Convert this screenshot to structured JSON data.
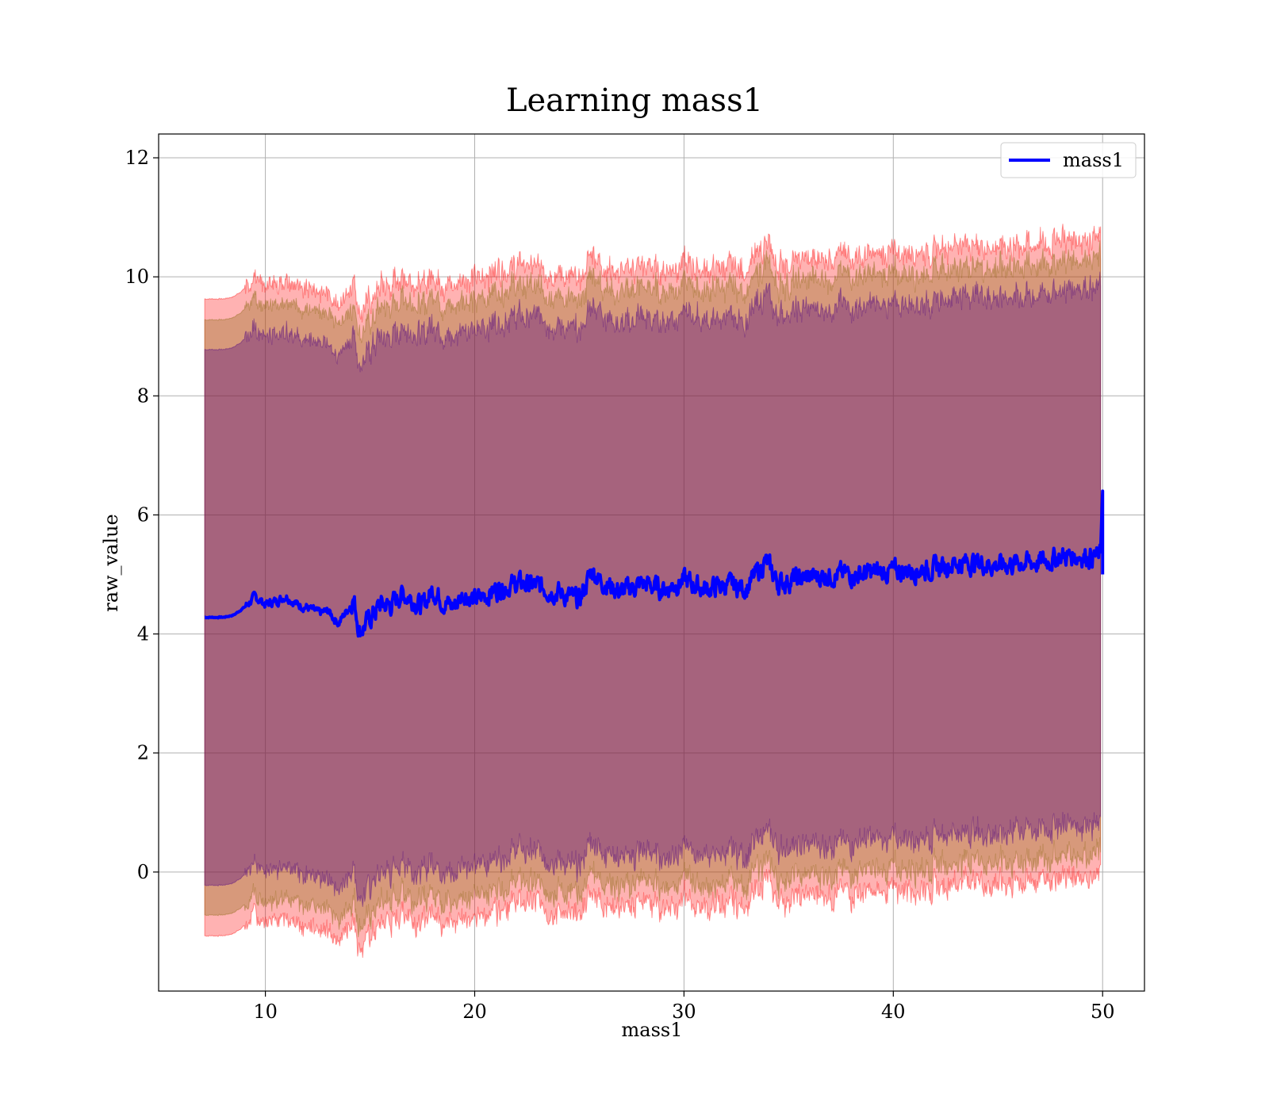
{
  "chart_data": {
    "type": "line",
    "title": "Learning mass1",
    "xlabel": "mass1",
    "ylabel": "raw_value",
    "xlim": [
      4.9,
      52.0
    ],
    "ylim": [
      -2.0,
      12.4
    ],
    "xticks": [
      10,
      20,
      30,
      40,
      50
    ],
    "yticks": [
      0,
      2,
      4,
      6,
      8,
      10,
      12
    ],
    "grid": true,
    "legend_position": "upper right",
    "x_start": 7.1,
    "x_end": 50.0,
    "series": [
      {
        "name": "mass1",
        "color": "#0000ff",
        "anchors": [
          [
            7.1,
            4.28
          ],
          [
            8.0,
            4.28
          ],
          [
            8.5,
            4.32
          ],
          [
            9.0,
            4.45
          ],
          [
            9.5,
            4.62
          ],
          [
            10.0,
            4.5
          ],
          [
            10.5,
            4.55
          ],
          [
            11.0,
            4.64
          ],
          [
            11.5,
            4.5
          ],
          [
            12.0,
            4.45
          ],
          [
            12.5,
            4.35
          ],
          [
            13.0,
            4.38
          ],
          [
            13.5,
            4.18
          ],
          [
            14.0,
            4.45
          ],
          [
            14.2,
            4.62
          ],
          [
            14.5,
            4.05
          ],
          [
            15.0,
            4.25
          ],
          [
            15.5,
            4.5
          ],
          [
            16.0,
            4.48
          ],
          [
            16.5,
            4.68
          ],
          [
            17.0,
            4.6
          ],
          [
            17.5,
            4.45
          ],
          [
            18.0,
            4.75
          ],
          [
            18.5,
            4.55
          ],
          [
            19.0,
            4.45
          ],
          [
            19.5,
            4.7
          ],
          [
            20.0,
            4.55
          ],
          [
            21.0,
            4.75
          ],
          [
            22.0,
            4.85
          ],
          [
            23.0,
            4.8
          ],
          [
            24.0,
            4.7
          ],
          [
            25.0,
            4.55
          ],
          [
            25.6,
            5.08
          ],
          [
            26.0,
            4.9
          ],
          [
            27.0,
            4.7
          ],
          [
            28.0,
            4.85
          ],
          [
            29.0,
            4.75
          ],
          [
            30.0,
            4.9
          ],
          [
            31.0,
            4.75
          ],
          [
            32.0,
            4.82
          ],
          [
            33.0,
            4.78
          ],
          [
            33.9,
            5.22
          ],
          [
            34.5,
            4.85
          ],
          [
            35.0,
            4.9
          ],
          [
            36.0,
            4.95
          ],
          [
            37.0,
            5.0
          ],
          [
            38.0,
            5.0
          ],
          [
            39.0,
            5.02
          ],
          [
            40.0,
            5.05
          ],
          [
            41.0,
            5.08
          ],
          [
            42.0,
            5.1
          ],
          [
            43.0,
            5.2
          ],
          [
            44.0,
            5.2
          ],
          [
            45.0,
            5.15
          ],
          [
            46.0,
            5.2
          ],
          [
            47.0,
            5.2
          ],
          [
            48.0,
            5.3
          ],
          [
            49.0,
            5.32
          ],
          [
            49.9,
            5.3
          ]
        ],
        "end_spike": [
          6.4,
          5.0
        ]
      }
    ],
    "bands": [
      {
        "fill": "#ff0000",
        "fill_opacity": 0.3,
        "upper_offset": 5.35,
        "lower_offset": -5.35
      },
      {
        "fill": "#8b6914",
        "fill_opacity": 0.35,
        "upper_offset": 5.0,
        "lower_offset": -5.0
      },
      {
        "fill": "#4b0082",
        "fill_opacity": 0.35,
        "upper_offset": 4.5,
        "lower_offset": -4.5
      }
    ]
  }
}
